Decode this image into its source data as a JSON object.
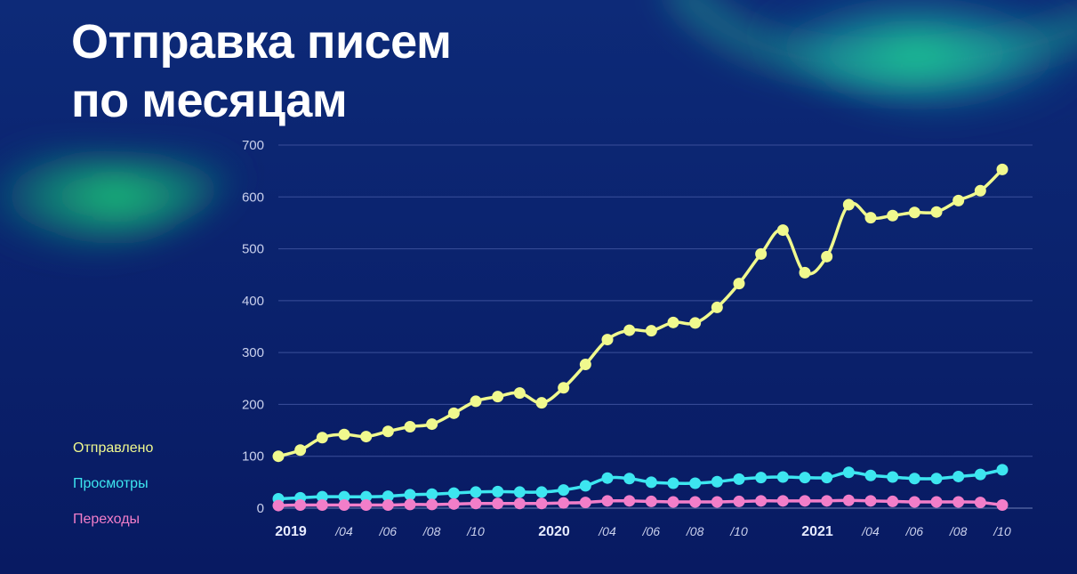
{
  "title_lines": [
    "Отправка писем",
    "по месяцам"
  ],
  "colors": {
    "background": "#0a1f6b",
    "sent": "#f0f98e",
    "views": "#3de6f0",
    "clicks": "#f27ec9",
    "grid": "#3a4f9a",
    "tick": "#c9d0ec"
  },
  "legend": [
    {
      "label": "Отправлено",
      "color": "#f0f98e"
    },
    {
      "label": "Просмотры",
      "color": "#3de6f0"
    },
    {
      "label": "Переходы",
      "color": "#f27ec9"
    }
  ],
  "chart_data": {
    "type": "line",
    "title": "Отправка писем по месяцам",
    "xlabel": "",
    "ylabel": "",
    "ylim": [
      0,
      700
    ],
    "yticks": [
      0,
      100,
      200,
      300,
      400,
      500,
      600,
      700
    ],
    "grid": true,
    "legend_position": "left",
    "x": [
      "2019-01",
      "2019-02",
      "2019-03",
      "2019-04",
      "2019-05",
      "2019-06",
      "2019-07",
      "2019-08",
      "2019-09",
      "2019-10",
      "2019-11",
      "2019-12",
      "2020-01",
      "2020-02",
      "2020-03",
      "2020-04",
      "2020-05",
      "2020-06",
      "2020-07",
      "2020-08",
      "2020-09",
      "2020-10",
      "2020-11",
      "2020-12",
      "2021-01",
      "2021-02",
      "2021-03",
      "2021-04",
      "2021-05",
      "2021-06",
      "2021-07",
      "2021-08",
      "2021-09",
      "2021-10"
    ],
    "xtick_labels": [
      {
        "index": 0,
        "label": "2019",
        "bold": true
      },
      {
        "index": 3,
        "label": "/04"
      },
      {
        "index": 5,
        "label": "/06"
      },
      {
        "index": 7,
        "label": "/08"
      },
      {
        "index": 9,
        "label": "/10"
      },
      {
        "index": 12,
        "label": "2020",
        "bold": true
      },
      {
        "index": 15,
        "label": "/04"
      },
      {
        "index": 17,
        "label": "/06"
      },
      {
        "index": 19,
        "label": "/08"
      },
      {
        "index": 21,
        "label": "/10"
      },
      {
        "index": 24,
        "label": "2021",
        "bold": true
      },
      {
        "index": 27,
        "label": "/04"
      },
      {
        "index": 29,
        "label": "/06"
      },
      {
        "index": 31,
        "label": "/08"
      },
      {
        "index": 33,
        "label": "/10"
      }
    ],
    "series": [
      {
        "name": "Отправлено",
        "color": "#f0f98e",
        "values": [
          100,
          112,
          136,
          142,
          138,
          148,
          157,
          162,
          183,
          206,
          215,
          222,
          203,
          232,
          277,
          325,
          343,
          342,
          358,
          357,
          387,
          433,
          490,
          536,
          454,
          485,
          585,
          560,
          564,
          570,
          571,
          593,
          612,
          653
        ]
      },
      {
        "name": "Просмотры",
        "color": "#3de6f0",
        "values": [
          18,
          20,
          22,
          22,
          22,
          23,
          26,
          27,
          29,
          31,
          32,
          31,
          31,
          35,
          43,
          58,
          57,
          50,
          48,
          48,
          51,
          56,
          59,
          60,
          59,
          59,
          69,
          63,
          60,
          57,
          57,
          61,
          65,
          74
        ]
      },
      {
        "name": "Переходы",
        "color": "#f27ec9",
        "values": [
          5,
          6,
          6,
          6,
          6,
          6,
          7,
          7,
          8,
          9,
          9,
          9,
          9,
          10,
          11,
          14,
          14,
          13,
          12,
          12,
          12,
          13,
          14,
          14,
          14,
          14,
          15,
          14,
          13,
          12,
          12,
          12,
          11,
          6
        ]
      }
    ]
  }
}
